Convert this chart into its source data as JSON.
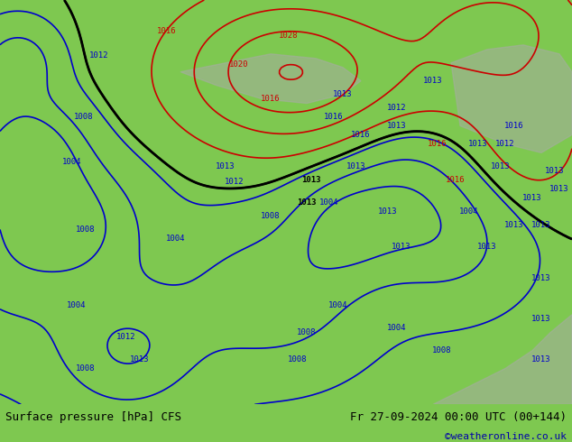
{
  "title_left": "Surface pressure [hPa] CFS",
  "title_right": "Fr 27-09-2024 00:00 UTC (00+144)",
  "credit": "©weatheronline.co.uk",
  "bg_color": "#7ec850",
  "land_color": "#9dd668",
  "sea_color": "#a0d060",
  "text_color_black": "#000000",
  "text_color_red": "#cc0000",
  "text_color_blue": "#0000cc",
  "text_color_credit": "#0000aa",
  "bottom_bar_color": "#ffffff",
  "figsize": [
    6.34,
    4.9
  ],
  "dpi": 100
}
